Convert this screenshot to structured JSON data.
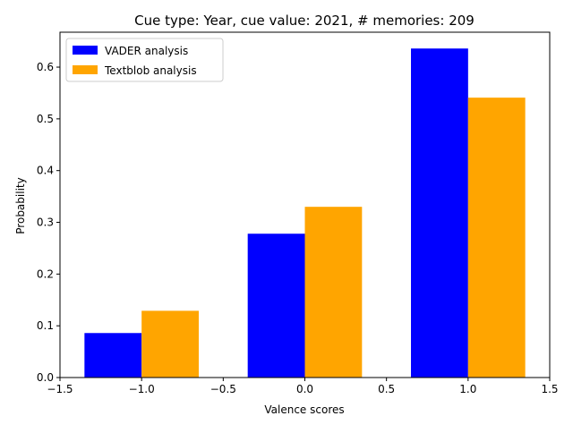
{
  "chart_data": {
    "type": "bar",
    "title": "Cue type: Year, cue value: 2021, # memories: 209",
    "xlabel": "Valence scores",
    "ylabel": "Probability",
    "xlim": [
      -1.5,
      1.5
    ],
    "ylim": [
      0,
      0.6675
    ],
    "x_ticks": [
      -1.5,
      -1.0,
      -0.5,
      0.0,
      0.5,
      1.0,
      1.5
    ],
    "x_tick_labels": [
      "−1.5",
      "−1.0",
      "−0.5",
      "0.0",
      "0.5",
      "1.0",
      "1.5"
    ],
    "y_ticks": [
      0.0,
      0.1,
      0.2,
      0.3,
      0.4,
      0.5,
      0.6
    ],
    "y_tick_labels": [
      "0.0",
      "0.1",
      "0.2",
      "0.3",
      "0.4",
      "0.5",
      "0.6"
    ],
    "categories": [
      -1,
      0,
      1
    ],
    "bar_width": 0.35,
    "grid": false,
    "legend_position": "upper-left",
    "series": [
      {
        "name": "VADER analysis",
        "color": "#0000ff",
        "values": [
          0.086,
          0.278,
          0.636
        ]
      },
      {
        "name": "Textblob analysis",
        "color": "#ffa500",
        "values": [
          0.129,
          0.33,
          0.541
        ]
      }
    ]
  }
}
